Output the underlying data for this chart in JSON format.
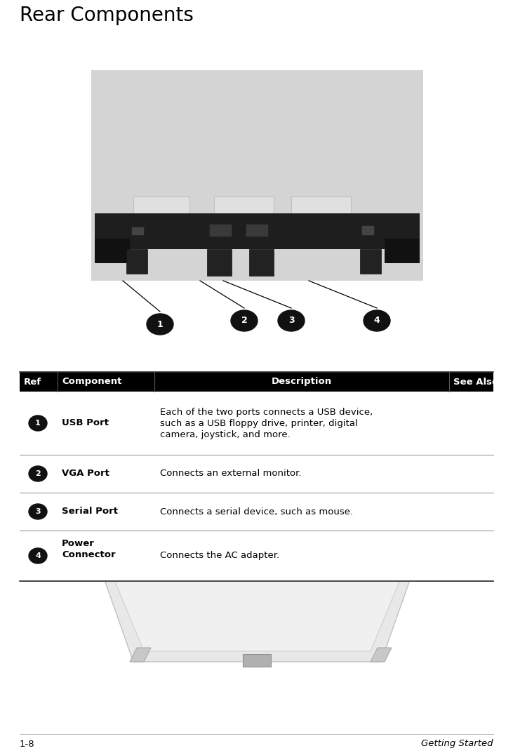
{
  "title": "Rear Components",
  "bg_color": "#ffffff",
  "title_fontsize": 20,
  "header_bg": "#000000",
  "header_fg": "#ffffff",
  "header_fontsize": 9.5,
  "rows": [
    {
      "ref_num": "1",
      "component": "USB Port",
      "description": "Each of the two ports connects a USB device,\nsuch as a USB floppy drive, printer, digital\ncamera, joystick, and more.",
      "see_also": ""
    },
    {
      "ref_num": "2",
      "component": "VGA Port",
      "description": "Connects an external monitor.",
      "see_also": ""
    },
    {
      "ref_num": "3",
      "component": "Serial Port",
      "description": "Connects a serial device, such as mouse.",
      "see_also": ""
    },
    {
      "ref_num": "4",
      "component": "Power\nConnector",
      "description": "Connects the AC adapter.",
      "see_also": ""
    }
  ],
  "footer_left": "1-8",
  "footer_right": "Getting Started",
  "footer_fontsize": 9.5,
  "table_fontsize": 9.5,
  "callout_numbers": [
    "1",
    "2",
    "3",
    "4"
  ]
}
